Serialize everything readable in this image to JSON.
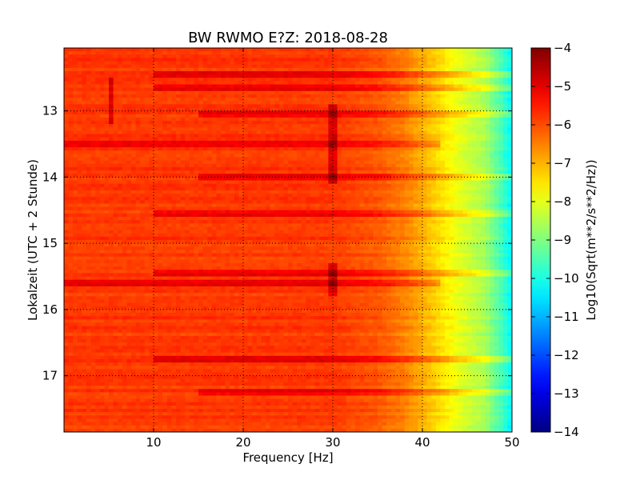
{
  "chart_data": {
    "type": "heatmap",
    "title": "BW RWMO E?Z: 2018-08-28",
    "xlabel": "Frequency [Hz]",
    "ylabel": "Lokalzeit (UTC + 2 Stunde)",
    "xlim": [
      0,
      50
    ],
    "ylim": [
      17.85,
      12.05
    ],
    "x_ticks": [
      10,
      20,
      30,
      40,
      50
    ],
    "y_ticks": [
      13,
      14,
      15,
      16,
      17
    ],
    "grid": true,
    "colormap": "jet",
    "colorbar": {
      "label": "Log10(Sqrt(m**2/s**2/Hz))",
      "range": [
        -14,
        -4
      ],
      "ticks": [
        -4,
        -5,
        -6,
        -7,
        -8,
        -9,
        -10,
        -11,
        -12,
        -13,
        -14
      ]
    },
    "spectrum_profile": {
      "frequency_hz": [
        0,
        5,
        10,
        15,
        20,
        25,
        30,
        35,
        38,
        41,
        43,
        45,
        47,
        49,
        50
      ],
      "level_log10": [
        -5.8,
        -5.8,
        -5.8,
        -5.8,
        -5.8,
        -5.8,
        -5.8,
        -6.1,
        -6.5,
        -7.2,
        -7.7,
        -8.2,
        -8.6,
        -9.7,
        -10.3
      ]
    },
    "strong_bands": [
      {
        "time": 12.45,
        "freq_range": [
          10,
          50
        ]
      },
      {
        "time": 12.65,
        "freq_range": [
          10,
          50
        ]
      },
      {
        "time": 13.07,
        "freq_range": [
          15,
          50
        ]
      },
      {
        "time": 13.5,
        "freq_range": [
          0,
          42
        ]
      },
      {
        "time": 14.0,
        "freq_range": [
          15,
          50
        ]
      },
      {
        "time": 14.55,
        "freq_range": [
          10,
          50
        ]
      },
      {
        "time": 15.45,
        "freq_range": [
          10,
          50
        ]
      },
      {
        "time": 15.6,
        "freq_range": [
          0,
          42
        ]
      },
      {
        "time": 16.75,
        "freq_range": [
          10,
          50
        ]
      },
      {
        "time": 17.25,
        "freq_range": [
          15,
          50
        ]
      }
    ],
    "vertical_features": [
      {
        "frequency": 5.1,
        "time_range": [
          12.5,
          13.2
        ]
      },
      {
        "frequency": 30.0,
        "time_range": [
          12.9,
          14.1
        ]
      },
      {
        "frequency": 30.0,
        "time_range": [
          15.3,
          15.8
        ]
      }
    ]
  }
}
